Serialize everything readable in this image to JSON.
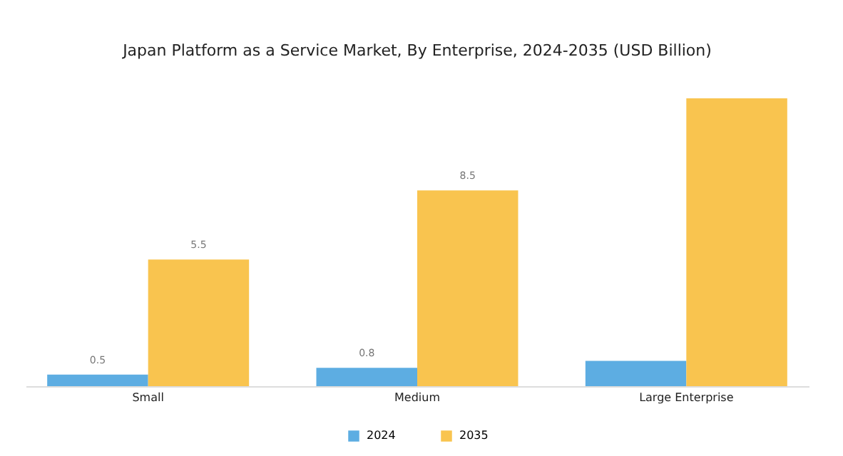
{
  "chart_data": {
    "type": "bar",
    "title": "Japan Platform as a Service Market, By Enterprise, 2024-2035 (USD Billion)",
    "categories": [
      "Small",
      "Medium",
      "Large Enterprise"
    ],
    "series": [
      {
        "name": "2024",
        "color": "#5dade2",
        "values": [
          0.5,
          0.8,
          1.1
        ],
        "value_labels": [
          "0.5",
          "0.8",
          null
        ]
      },
      {
        "name": "2035",
        "color": "#f9c44f",
        "values": [
          5.5,
          8.5,
          12.5
        ],
        "value_labels": [
          "5.5",
          "8.5",
          null
        ]
      }
    ],
    "legend": "bottom",
    "grid": false
  }
}
